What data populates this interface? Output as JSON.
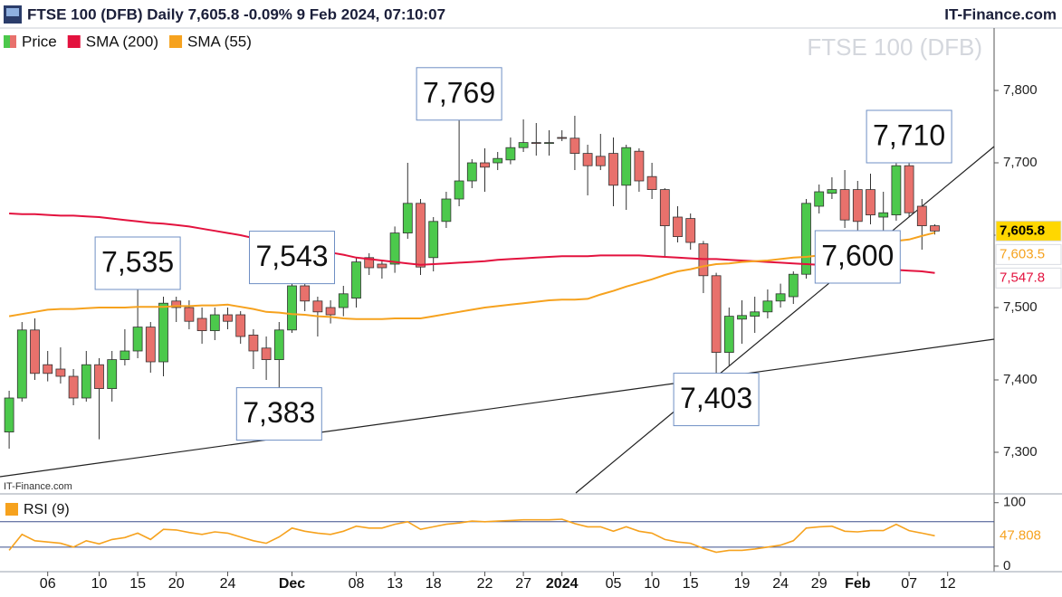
{
  "chart_data": [
    {
      "type": "candlestick",
      "title": "FTSE 100 (DFB) Daily 7,605.8 -0.09% 9 Feb 2024, 07:10:07",
      "source": "IT-Finance.com",
      "watermark": "FTSE 100 (DFB)",
      "credit": "IT-Finance.com",
      "categories": [
        null,
        null,
        null,
        "06",
        null,
        null,
        null,
        "10",
        null,
        null,
        "15",
        null,
        null,
        "20",
        null,
        null,
        null,
        "24",
        null,
        null,
        null,
        null,
        "Dec",
        null,
        null,
        null,
        null,
        "08",
        null,
        null,
        "13",
        null,
        null,
        "18",
        null,
        null,
        null,
        "22",
        null,
        null,
        "27",
        null,
        null,
        "2024",
        null,
        null,
        null,
        "05",
        null,
        null,
        "10",
        null,
        null,
        "15",
        null,
        null,
        null,
        "19",
        null,
        null,
        "24",
        null,
        null,
        "29",
        null,
        null,
        "Feb",
        null,
        null,
        null,
        "07",
        null,
        null,
        "12"
      ],
      "series": [
        {
          "name": "Price",
          "up_color": "#4cc94c",
          "down_color": "#e8716c",
          "tag_color": "#ffd700",
          "open": [
            7328,
            7375,
            7469,
            7421,
            7415,
            7405,
            7375,
            7421,
            7388,
            7428,
            7440,
            7473,
            7425,
            7509,
            7500,
            7485,
            7468,
            7490,
            7490,
            7462,
            7444,
            7428,
            7469,
            7530,
            7509,
            7500,
            7500,
            7513,
            7569,
            7560,
            7560,
            7603,
            7644,
            7569,
            7619,
            7650,
            7675,
            7700,
            7700,
            7704,
            7721,
            7728,
            7728,
            7735,
            7734,
            7713,
            7709,
            7713,
            7669,
            7716,
            7681,
            7663,
            7625,
            7623,
            7588,
            7544,
            7438,
            7484,
            7488,
            7494,
            7509,
            7515,
            7546,
            7640,
            7658,
            7663,
            7663,
            7663,
            7625,
            7628,
            7696,
            7640,
            7613,
            null
          ],
          "high": [
            7385,
            7480,
            7485,
            7440,
            7445,
            7415,
            7440,
            7430,
            7440,
            7470,
            7535,
            7480,
            7515,
            7515,
            7510,
            7500,
            7500,
            7500,
            7495,
            7470,
            7460,
            7480,
            7543,
            7535,
            7515,
            7510,
            7530,
            7570,
            7575,
            7565,
            7612,
            7700,
            7650,
            7625,
            7660,
            7769,
            7705,
            7720,
            7715,
            7735,
            7760,
            7755,
            7745,
            7745,
            7765,
            7725,
            7740,
            7735,
            7725,
            7720,
            7700,
            7665,
            7640,
            7630,
            7592,
            7548,
            7500,
            7510,
            7515,
            7525,
            7533,
            7550,
            7650,
            7670,
            7680,
            7690,
            7675,
            7685,
            7660,
            7700,
            7710,
            7650,
            7615,
            null
          ],
          "low": [
            7305,
            7370,
            7400,
            7398,
            7395,
            7365,
            7370,
            7318,
            7370,
            7420,
            7430,
            7410,
            7405,
            7480,
            7470,
            7450,
            7455,
            7470,
            7450,
            7415,
            7400,
            7383,
            7465,
            7495,
            7460,
            7478,
            7488,
            7500,
            7545,
            7540,
            7548,
            7595,
            7545,
            7550,
            7610,
            7640,
            7665,
            7660,
            7690,
            7698,
            7715,
            7710,
            7710,
            7730,
            7690,
            7655,
            7690,
            7640,
            7635,
            7660,
            7650,
            7570,
            7590,
            7580,
            7520,
            7403,
            7420,
            7450,
            7465,
            7485,
            7500,
            7505,
            7540,
            7630,
            7650,
            7610,
            7600,
            7615,
            7601,
            7620,
            7625,
            7580,
            7601,
            null
          ],
          "close": [
            7375,
            7469,
            7409,
            7409,
            7405,
            7375,
            7421,
            7388,
            7428,
            7440,
            7473,
            7425,
            7506,
            7500,
            7481,
            7468,
            7490,
            7481,
            7460,
            7440,
            7428,
            7469,
            7530,
            7509,
            7494,
            7490,
            7519,
            7563,
            7555,
            7555,
            7603,
            7644,
            7556,
            7619,
            7650,
            7675,
            7700,
            7694,
            7706,
            7721,
            7728,
            7727,
            7728,
            7734,
            7713,
            7696,
            7696,
            7669,
            7721,
            7675,
            7663,
            7613,
            7598,
            7590,
            7544,
            7438,
            7488,
            7489,
            7494,
            7509,
            7519,
            7546,
            7644,
            7660,
            7663,
            7621,
            7619,
            7628,
            7631,
            7696,
            7631,
            7613,
            7605.8,
            null
          ],
          "value_labels": [
            null,
            null,
            null,
            null,
            null,
            null,
            null,
            null,
            null,
            null,
            null,
            null,
            null,
            null,
            null,
            null,
            null,
            null,
            null,
            null,
            null,
            null,
            null,
            null,
            null,
            null,
            null,
            null,
            null,
            null,
            null,
            null,
            null,
            null,
            null,
            null,
            null,
            null,
            null,
            null,
            null,
            null,
            null,
            null,
            null,
            null,
            null,
            null,
            null,
            null,
            null,
            null,
            null,
            null,
            null,
            null,
            null,
            null,
            null,
            null,
            null,
            null,
            null,
            null,
            null,
            null,
            null,
            null,
            null,
            null,
            null,
            null,
            "7,605.8",
            null
          ]
        },
        {
          "name": "SMA (200)",
          "color": "#e3123e",
          "values": [
            7630,
            7629,
            7629,
            7628,
            7627,
            7627,
            7626,
            7625,
            7623,
            7621,
            7619,
            7617,
            7616,
            7614,
            7612,
            7609,
            7606,
            7603,
            7600,
            7596,
            7593,
            7590,
            7587,
            7583,
            7580,
            7576,
            7573,
            7569,
            7567,
            7565,
            7563,
            7561,
            7559,
            7560,
            7561,
            7562,
            7563,
            7564,
            7566,
            7567,
            7568,
            7569,
            7570,
            7571,
            7571,
            7571,
            7572,
            7572,
            7572,
            7572,
            7571,
            7570,
            7569,
            7568,
            7567,
            7567,
            7566,
            7565,
            7564,
            7563,
            7562,
            7561,
            7560,
            7559,
            7558,
            7557,
            7556,
            7555,
            7553,
            7552,
            7551,
            7550,
            7547.8,
            null
          ],
          "value_labels": [
            null,
            null,
            null,
            null,
            null,
            null,
            null,
            null,
            null,
            null,
            null,
            null,
            null,
            null,
            null,
            null,
            null,
            null,
            null,
            null,
            null,
            null,
            null,
            null,
            null,
            null,
            null,
            null,
            null,
            null,
            null,
            null,
            null,
            null,
            null,
            null,
            null,
            null,
            null,
            null,
            null,
            null,
            null,
            null,
            null,
            null,
            null,
            null,
            null,
            null,
            null,
            null,
            null,
            null,
            null,
            null,
            null,
            null,
            null,
            null,
            null,
            null,
            null,
            null,
            null,
            null,
            null,
            null,
            null,
            null,
            null,
            null,
            "7,547.8",
            null
          ]
        },
        {
          "name": "SMA (55)",
          "color": "#f6a21e",
          "values": [
            7488,
            7491,
            7494,
            7497,
            7498,
            7498,
            7499,
            7500,
            7500,
            7500,
            7501,
            7501,
            7501,
            7502,
            7502,
            7503,
            7503,
            7504,
            7501,
            7498,
            7494,
            7493,
            7491,
            7490,
            7488,
            7487,
            7485,
            7484,
            7484,
            7484,
            7485,
            7485,
            7485,
            7488,
            7491,
            7494,
            7497,
            7500,
            7502,
            7504,
            7506,
            7508,
            7510,
            7511,
            7511,
            7512,
            7518,
            7523,
            7529,
            7534,
            7539,
            7545,
            7550,
            7553,
            7557,
            7560,
            7561,
            7563,
            7564,
            7565,
            7567,
            7569,
            7570,
            7572,
            7576,
            7581,
            7585,
            7587,
            7589,
            7592,
            7594,
            7599,
            7603.5,
            null
          ],
          "value_labels": [
            null,
            null,
            null,
            null,
            null,
            null,
            null,
            null,
            null,
            null,
            null,
            null,
            null,
            null,
            null,
            null,
            null,
            null,
            null,
            null,
            null,
            null,
            null,
            null,
            null,
            null,
            null,
            null,
            null,
            null,
            null,
            null,
            null,
            null,
            null,
            null,
            null,
            null,
            null,
            null,
            null,
            null,
            null,
            null,
            null,
            null,
            null,
            null,
            null,
            null,
            null,
            null,
            null,
            null,
            null,
            null,
            null,
            null,
            null,
            null,
            null,
            null,
            null,
            null,
            null,
            null,
            null,
            null,
            null,
            null,
            null,
            null,
            "7,603.5",
            null
          ]
        }
      ],
      "ylim": [
        7262.5,
        7887.5
      ],
      "yticks": [
        {
          "value": 7300,
          "label": "7,300"
        },
        {
          "value": 7400,
          "label": "7,400"
        },
        {
          "value": 7500,
          "label": "7,500"
        },
        {
          "value": 7600,
          "label": "7,600"
        },
        {
          "value": 7700,
          "label": "7,700"
        },
        {
          "value": 7800,
          "label": "7,800"
        }
      ],
      "annotations": [
        {
          "value": 7535,
          "label": "7,535"
        },
        {
          "value": 7543,
          "label": "7,543"
        },
        {
          "value": 7769,
          "label": "7,769"
        },
        {
          "value": 7710,
          "label": "7,710"
        },
        {
          "value": 7383,
          "label": "7,383"
        },
        {
          "value": 7403,
          "label": "7,403"
        },
        {
          "value": 7600,
          "label": "7,600"
        }
      ]
    },
    {
      "type": "line",
      "series": [
        {
          "name": "RSI (9)",
          "color": "#f6a21e",
          "values": [
            25,
            50,
            40,
            38,
            36,
            30,
            40,
            35,
            42,
            45,
            52,
            42,
            58,
            57,
            53,
            50,
            54,
            52,
            46,
            40,
            36,
            46,
            60,
            55,
            52,
            50,
            55,
            63,
            60,
            60,
            66,
            70,
            58,
            62,
            66,
            68,
            71,
            70,
            71,
            72,
            73,
            73,
            73,
            74,
            67,
            62,
            62,
            55,
            62,
            55,
            52,
            42,
            38,
            36,
            28,
            22,
            25,
            25,
            27,
            30,
            33,
            40,
            60,
            62,
            63,
            55,
            54,
            56,
            56,
            66,
            56,
            52,
            47.808,
            null
          ]
        }
      ],
      "ylim": [
        -3,
        111
      ],
      "yticks": [
        0,
        100
      ],
      "levels": [
        70,
        30
      ]
    }
  ]
}
